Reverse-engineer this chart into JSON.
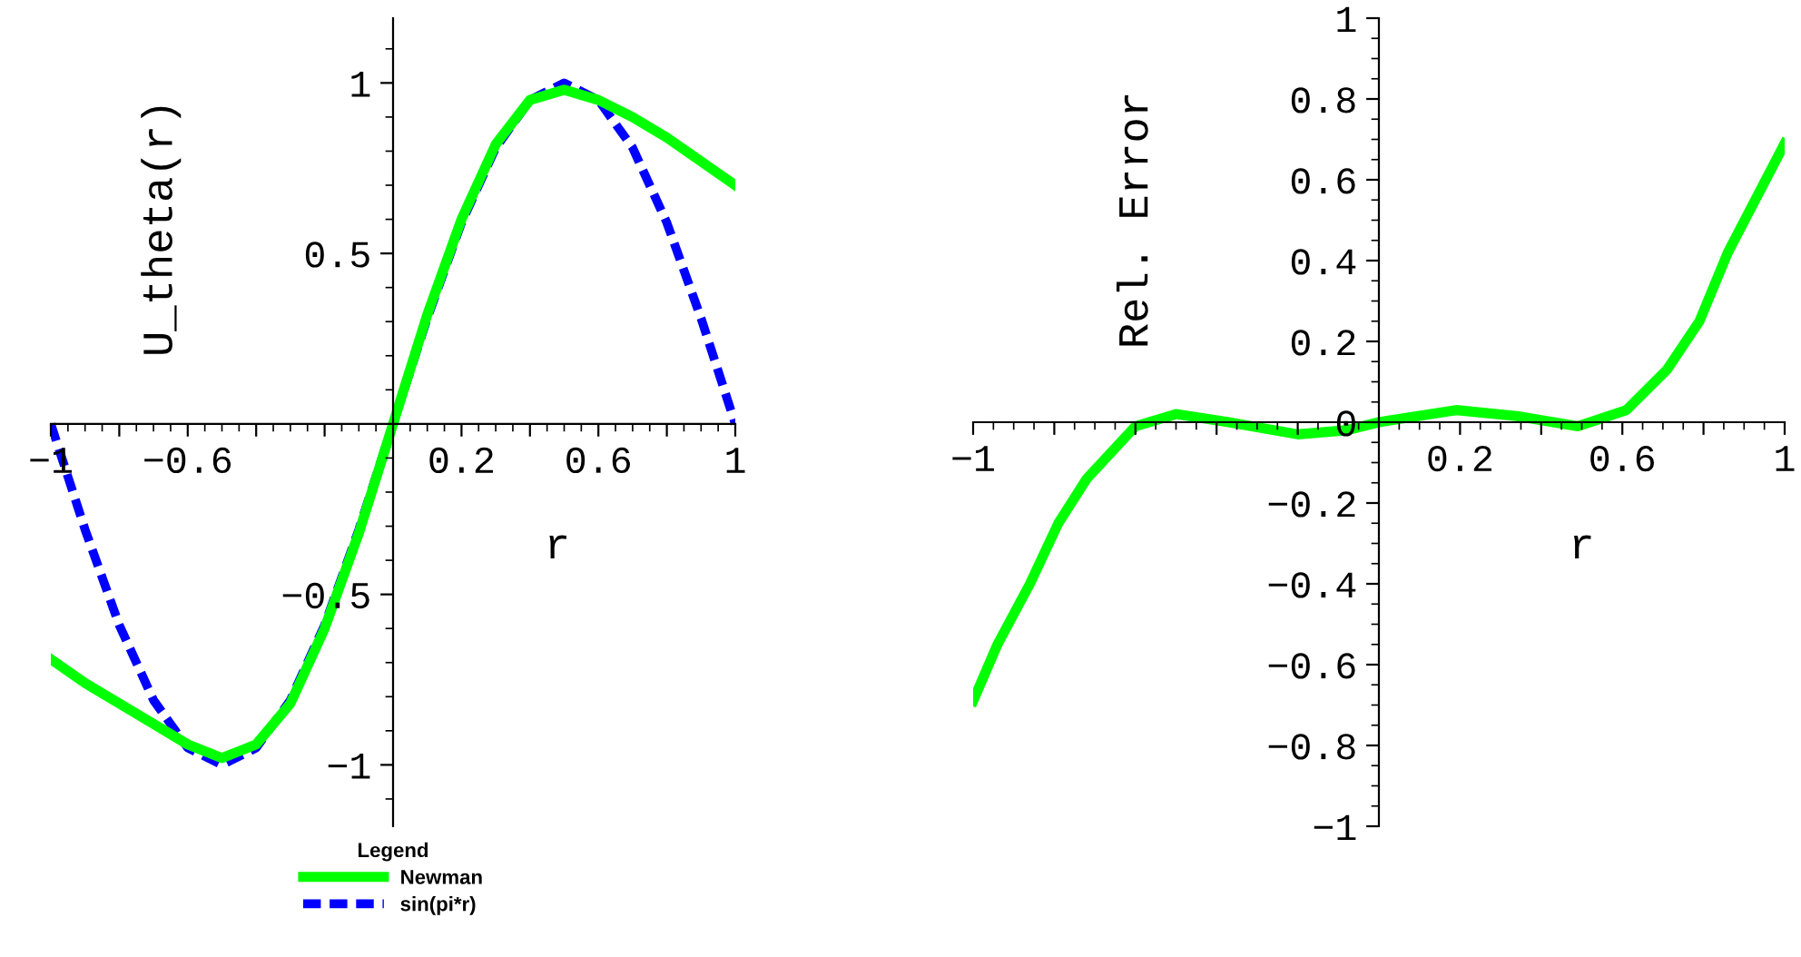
{
  "chart_data": [
    {
      "type": "line",
      "xlabel": "r",
      "ylabel": "U_theta(r)",
      "legend_title": "Legend",
      "legend": "bottom",
      "xlim": [
        -1,
        1
      ],
      "ylim": [
        -1.18,
        1.19
      ],
      "xticks": [
        {
          "value": -1,
          "label": "−1"
        },
        {
          "value": -0.8,
          "label": null
        },
        {
          "value": -0.6,
          "label": "−0.6"
        },
        {
          "value": -0.4,
          "label": null
        },
        {
          "value": -0.2,
          "label": null
        },
        {
          "value": 0.2,
          "label": "0.2"
        },
        {
          "value": 0.4,
          "label": null
        },
        {
          "value": 0.6,
          "label": "0.6"
        },
        {
          "value": 0.8,
          "label": null
        },
        {
          "value": 1,
          "label": "1"
        }
      ],
      "yticks": [
        {
          "value": -1,
          "label": "−1"
        },
        {
          "value": -0.5,
          "label": "−0.5"
        },
        0.5,
        1
      ],
      "x": [
        -1,
        -0.9,
        -0.8,
        -0.7,
        -0.6,
        -0.5,
        -0.4,
        -0.3,
        -0.2,
        -0.1,
        0,
        0.1,
        0.2,
        0.3,
        0.4,
        0.5,
        0.6,
        0.7,
        0.8,
        0.9,
        1
      ],
      "series": [
        {
          "name": "Newman",
          "color": "#00ff00",
          "line_style": "solid",
          "values": [
            -0.69,
            -0.76,
            -0.82,
            -0.88,
            -0.94,
            -0.98,
            -0.94,
            -0.82,
            -0.6,
            -0.32,
            0,
            0.32,
            0.6,
            0.82,
            0.95,
            0.98,
            0.95,
            0.9,
            0.84,
            0.77,
            0.7
          ]
        },
        {
          "name": "sin(pi*r)",
          "color": "#0000ff",
          "line_style": "dashed",
          "values": [
            0,
            -0.31,
            -0.59,
            -0.81,
            -0.95,
            -1,
            -0.95,
            -0.81,
            -0.59,
            -0.31,
            0,
            0.31,
            0.59,
            0.81,
            0.95,
            1,
            0.95,
            0.81,
            0.59,
            0.31,
            0
          ]
        }
      ]
    },
    {
      "type": "line",
      "xlabel": "r",
      "ylabel": "Rel. Error",
      "xlim": [
        -1,
        1
      ],
      "ylim": [
        -1,
        1
      ],
      "xticks": [
        {
          "value": -1,
          "label": "−1"
        },
        {
          "value": -0.8,
          "label": null
        },
        {
          "value": -0.6,
          "label": null
        },
        {
          "value": -0.4,
          "label": null
        },
        {
          "value": -0.2,
          "label": null
        },
        {
          "value": 0.2,
          "label": "0.2"
        },
        {
          "value": 0.4,
          "label": null
        },
        {
          "value": 0.6,
          "label": "0.6"
        },
        {
          "value": 0.8,
          "label": null
        },
        {
          "value": 1,
          "label": "1"
        }
      ],
      "yticks": [
        {
          "value": -1,
          "label": "−1"
        },
        {
          "value": -0.8,
          "label": "−0.8"
        },
        {
          "value": -0.6,
          "label": "−0.6"
        },
        {
          "value": -0.4,
          "label": "−0.4"
        },
        {
          "value": -0.2,
          "label": "−0.2"
        },
        0,
        0.2,
        0.4,
        0.6,
        0.8,
        1
      ],
      "series": [
        {
          "color": "#00ff00",
          "line_style": "solid",
          "x": [
            -1,
            -0.94,
            -0.86,
            -0.79,
            -0.72,
            -0.6,
            -0.5,
            -0.37,
            -0.2,
            -0.08,
            0,
            0.19,
            0.34,
            0.49,
            0.61,
            0.71,
            0.79,
            0.86,
            1
          ],
          "values": [
            -0.69,
            -0.55,
            -0.4,
            -0.25,
            -0.14,
            -0.01,
            0.02,
            0,
            -0.03,
            -0.02,
            0,
            0.03,
            0.015,
            -0.01,
            0.03,
            0.13,
            0.25,
            0.42,
            0.69
          ]
        }
      ]
    }
  ]
}
